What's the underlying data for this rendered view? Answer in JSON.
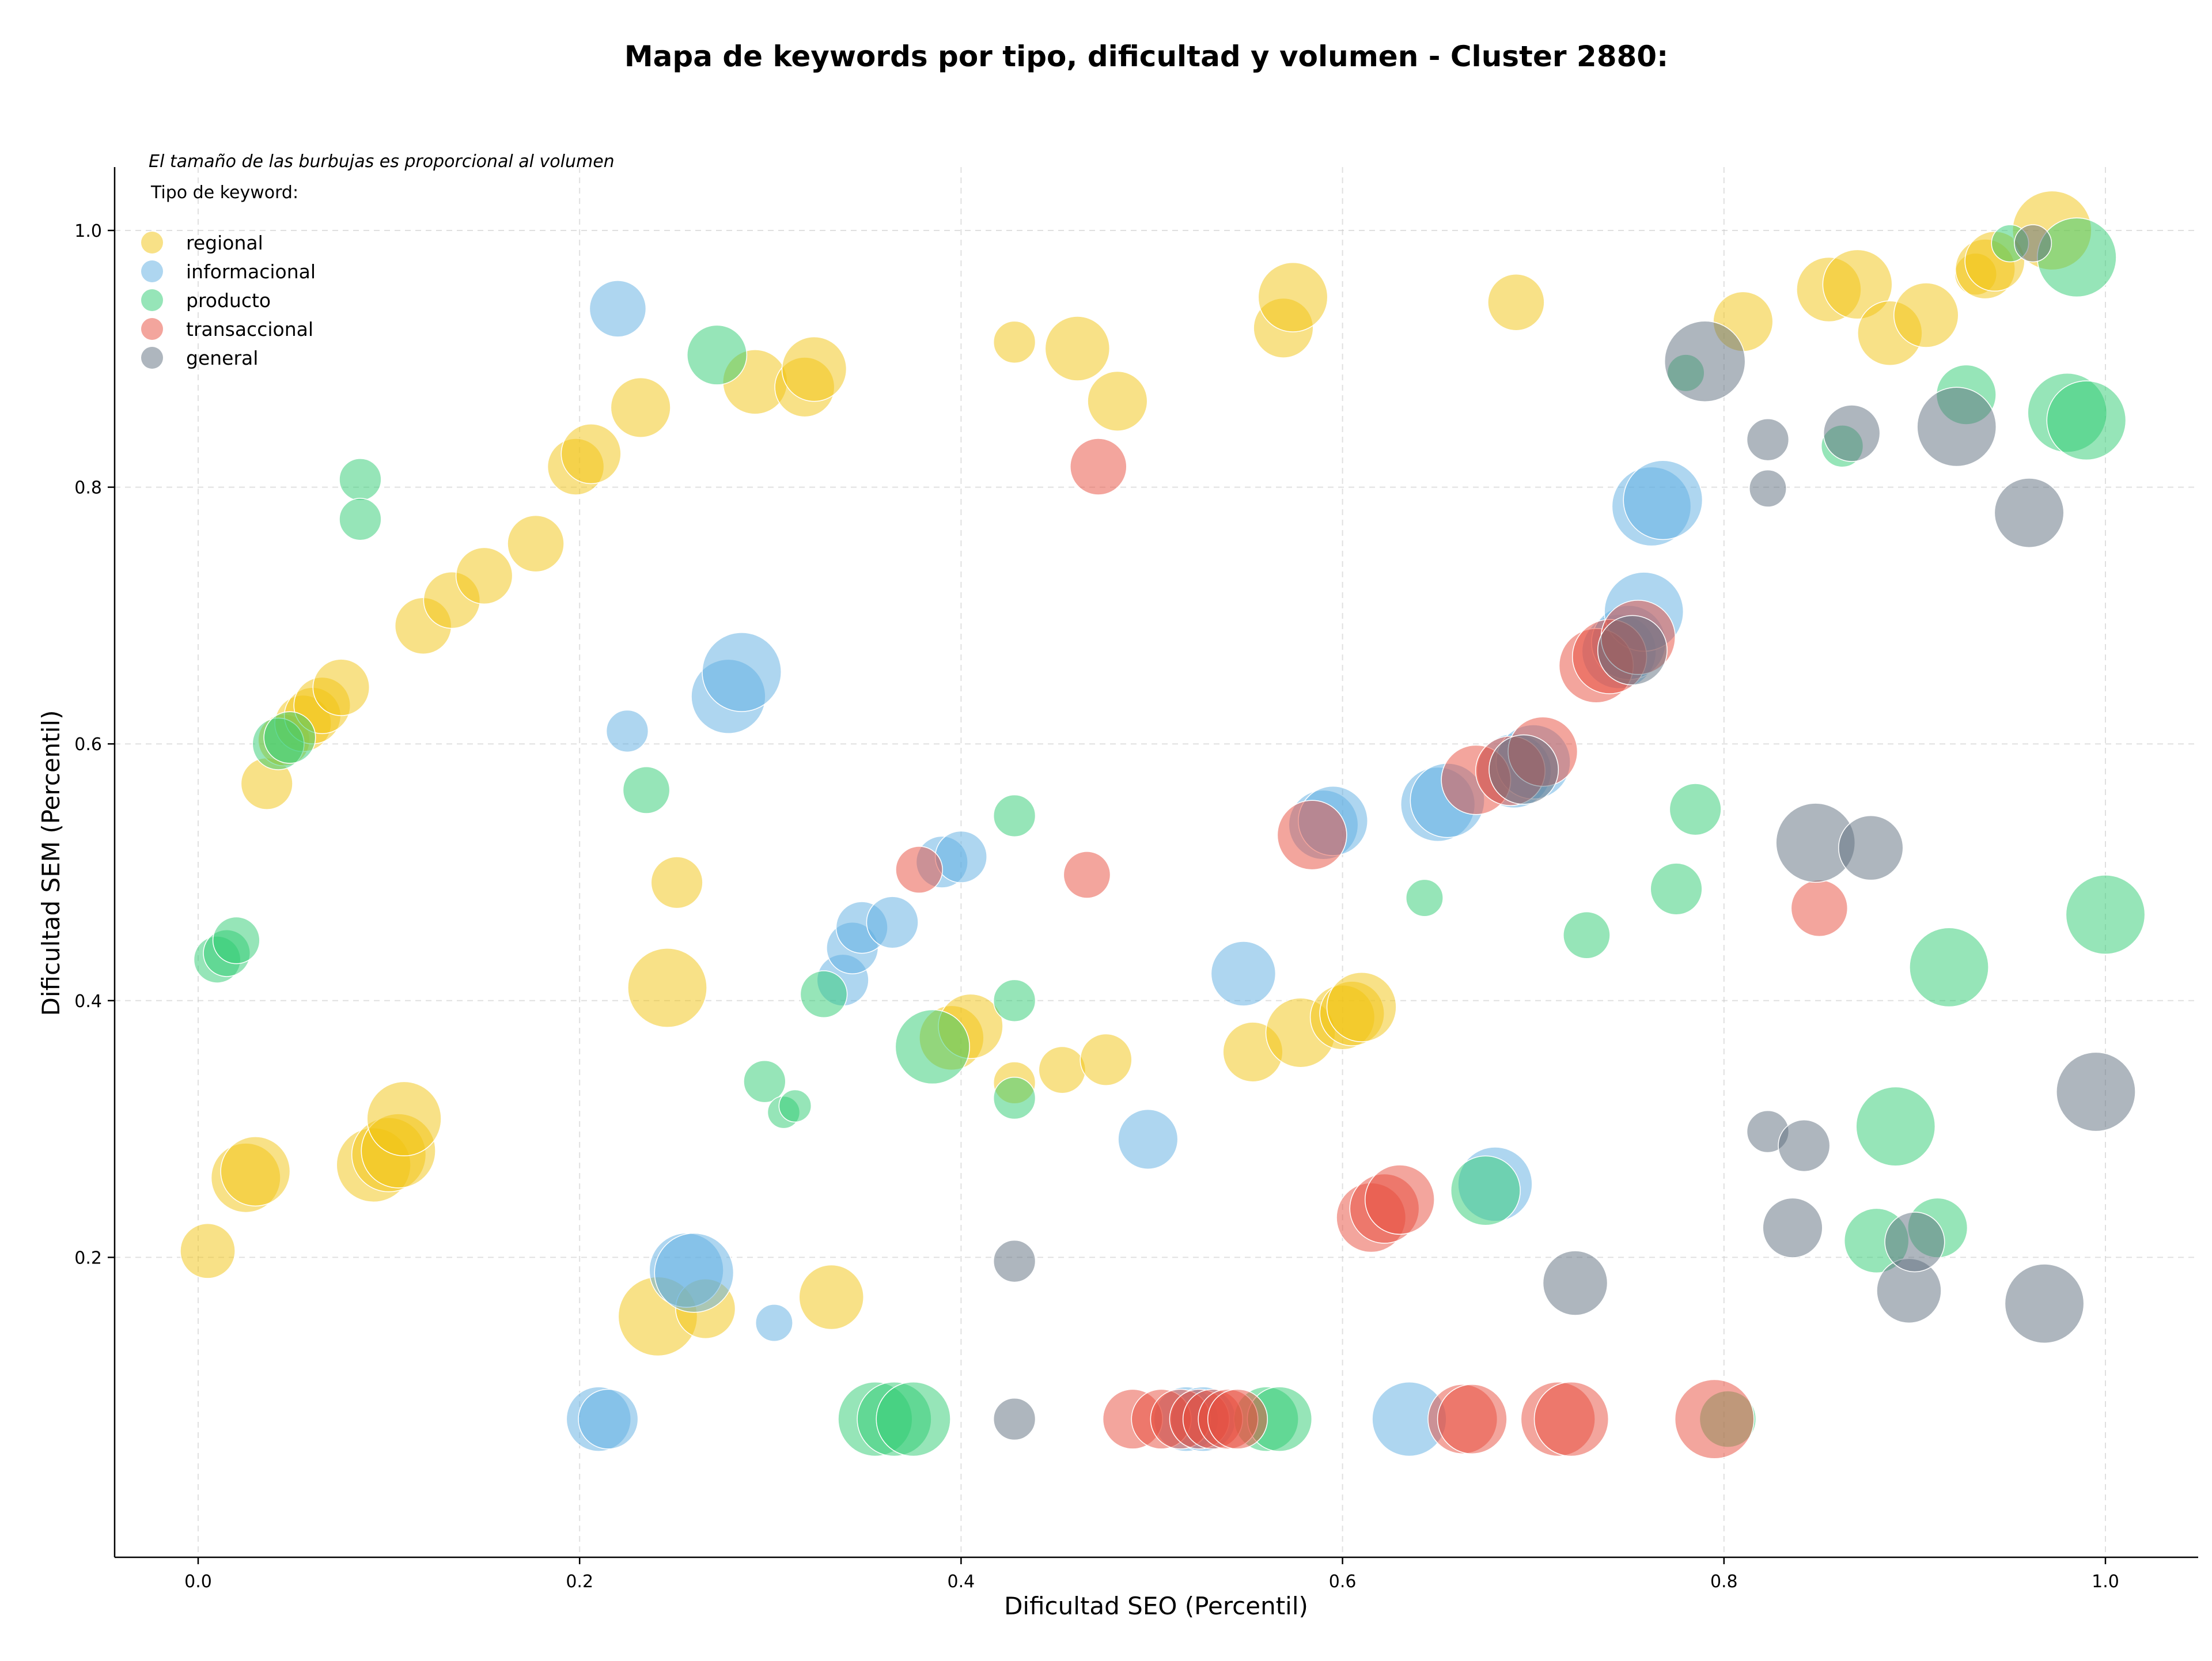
{
  "chart_data": {
    "type": "scatter",
    "title": "Mapa de keywords por tipo, dificultad y volumen - Cluster 2880:",
    "xlabel": "Dificultad SEO (Percentil)",
    "ylabel": "Dificultad SEM (Percentil)",
    "note": "El tamaño de las burbujas es proporcional al volumen",
    "legend_title": "Tipo de keyword:",
    "legend_position": "top-left",
    "xlim": [
      -0.045,
      1.05
    ],
    "ylim": [
      0.035,
      1.045
    ],
    "xticks": [
      0.0,
      0.2,
      0.4,
      0.6,
      0.8,
      1.0
    ],
    "yticks": [
      0.2,
      0.4,
      0.6,
      0.8,
      1.0
    ],
    "xtick_labels": [
      "0.0",
      "0.2",
      "0.4",
      "0.6",
      "0.8",
      "1.0"
    ],
    "ytick_labels": [
      "0.2",
      "0.4",
      "0.6",
      "0.8",
      "1.0"
    ],
    "grid": true,
    "series": [
      {
        "name": "regional",
        "color": "#f1c40f",
        "points": [
          [
            0.005,
            0.205,
            3.4
          ],
          [
            0.025,
            0.262,
            4.3
          ],
          [
            0.03,
            0.267,
            4.3
          ],
          [
            0.036,
            0.569,
            3.2
          ],
          [
            0.045,
            0.603,
            3.2
          ],
          [
            0.055,
            0.616,
            3.5
          ],
          [
            0.06,
            0.622,
            3.5
          ],
          [
            0.065,
            0.63,
            3.5
          ],
          [
            0.075,
            0.644,
            3.5
          ],
          [
            0.092,
            0.272,
            4.6
          ],
          [
            0.1,
            0.28,
            4.6
          ],
          [
            0.105,
            0.283,
            4.6
          ],
          [
            0.108,
            0.308,
            4.6
          ],
          [
            0.118,
            0.692,
            3.5
          ],
          [
            0.133,
            0.712,
            3.5
          ],
          [
            0.15,
            0.731,
            3.5
          ],
          [
            0.177,
            0.756,
            3.5
          ],
          [
            0.198,
            0.816,
            3.5
          ],
          [
            0.206,
            0.826,
            3.7
          ],
          [
            0.232,
            0.862,
            3.7
          ],
          [
            0.241,
            0.154,
            4.9
          ],
          [
            0.246,
            0.41,
            4.9
          ],
          [
            0.251,
            0.492,
            3.2
          ],
          [
            0.266,
            0.16,
            3.7
          ],
          [
            0.292,
            0.882,
            4.0
          ],
          [
            0.318,
            0.878,
            3.7
          ],
          [
            0.323,
            0.892,
            4.0
          ],
          [
            0.332,
            0.169,
            4.0
          ],
          [
            0.395,
            0.371,
            4.0
          ],
          [
            0.405,
            0.38,
            4.0
          ],
          [
            0.428,
            0.913,
            2.6
          ],
          [
            0.428,
            0.336,
            2.6
          ],
          [
            0.453,
            0.346,
            2.9
          ],
          [
            0.461,
            0.908,
            4.0
          ],
          [
            0.476,
            0.354,
            3.2
          ],
          [
            0.482,
            0.867,
            3.7
          ],
          [
            0.553,
            0.36,
            3.7
          ],
          [
            0.569,
            0.924,
            3.7
          ],
          [
            0.574,
            0.948,
            4.3
          ],
          [
            0.578,
            0.375,
            4.3
          ],
          [
            0.6,
            0.387,
            4.0
          ],
          [
            0.605,
            0.39,
            4.0
          ],
          [
            0.61,
            0.395,
            4.3
          ],
          [
            0.691,
            0.944,
            3.5
          ],
          [
            0.81,
            0.929,
            3.7
          ],
          [
            0.855,
            0.954,
            4.0
          ],
          [
            0.87,
            0.958,
            4.3
          ],
          [
            0.887,
            0.92,
            4.0
          ],
          [
            0.906,
            0.934,
            4.0
          ],
          [
            0.932,
            0.966,
            2.6
          ],
          [
            0.937,
            0.97,
            3.7
          ],
          [
            0.942,
            0.976,
            3.7
          ],
          [
            0.972,
            1.0,
            4.9
          ]
        ]
      },
      {
        "name": "informacional",
        "color": "#5dade2",
        "points": [
          [
            0.21,
            0.074,
            4.0
          ],
          [
            0.215,
            0.074,
            3.7
          ],
          [
            0.22,
            0.939,
            3.5
          ],
          [
            0.225,
            0.61,
            2.6
          ],
          [
            0.256,
            0.19,
            4.6
          ],
          [
            0.26,
            0.188,
            4.9
          ],
          [
            0.278,
            0.637,
            4.6
          ],
          [
            0.285,
            0.656,
            4.9
          ],
          [
            0.302,
            0.149,
            2.3
          ],
          [
            0.338,
            0.416,
            3.2
          ],
          [
            0.343,
            0.441,
            3.2
          ],
          [
            0.348,
            0.457,
            3.2
          ],
          [
            0.364,
            0.461,
            3.2
          ],
          [
            0.39,
            0.508,
            3.2
          ],
          [
            0.4,
            0.512,
            3.2
          ],
          [
            0.498,
            0.292,
            3.7
          ],
          [
            0.518,
            0.074,
            4.0
          ],
          [
            0.527,
            0.074,
            4.0
          ],
          [
            0.548,
            0.421,
            4.0
          ],
          [
            0.59,
            0.537,
            4.3
          ],
          [
            0.595,
            0.54,
            4.3
          ],
          [
            0.635,
            0.074,
            4.6
          ],
          [
            0.65,
            0.553,
            4.6
          ],
          [
            0.655,
            0.556,
            4.6
          ],
          [
            0.68,
            0.257,
            4.6
          ],
          [
            0.69,
            0.579,
            4.6
          ],
          [
            0.7,
            0.586,
            4.6
          ],
          [
            0.745,
            0.672,
            4.6
          ],
          [
            0.75,
            0.679,
            4.6
          ],
          [
            0.758,
            0.703,
            4.9
          ],
          [
            0.762,
            0.785,
            4.9
          ],
          [
            0.768,
            0.79,
            4.9
          ]
        ]
      },
      {
        "name": "producto",
        "color": "#2ecc71",
        "points": [
          [
            0.01,
            0.432,
            2.9
          ],
          [
            0.015,
            0.437,
            2.9
          ],
          [
            0.02,
            0.447,
            2.9
          ],
          [
            0.042,
            0.6,
            3.2
          ],
          [
            0.048,
            0.605,
            3.2
          ],
          [
            0.085,
            0.806,
            2.6
          ],
          [
            0.085,
            0.775,
            2.6
          ],
          [
            0.235,
            0.564,
            2.9
          ],
          [
            0.272,
            0.903,
            3.7
          ],
          [
            0.297,
            0.337,
            2.6
          ],
          [
            0.307,
            0.313,
            2.0
          ],
          [
            0.313,
            0.318,
            2.0
          ],
          [
            0.328,
            0.405,
            2.9
          ],
          [
            0.355,
            0.074,
            4.6
          ],
          [
            0.365,
            0.074,
            4.6
          ],
          [
            0.375,
            0.074,
            4.6
          ],
          [
            0.385,
            0.364,
            4.6
          ],
          [
            0.428,
            0.544,
            2.6
          ],
          [
            0.428,
            0.4,
            2.6
          ],
          [
            0.428,
            0.324,
            2.6
          ],
          [
            0.56,
            0.074,
            4.0
          ],
          [
            0.567,
            0.074,
            4.0
          ],
          [
            0.643,
            0.48,
            2.3
          ],
          [
            0.675,
            0.252,
            4.3
          ],
          [
            0.728,
            0.451,
            2.9
          ],
          [
            0.775,
            0.487,
            3.2
          ],
          [
            0.78,
            0.889,
            2.3
          ],
          [
            0.785,
            0.549,
            3.2
          ],
          [
            0.802,
            0.074,
            3.5
          ],
          [
            0.862,
            0.832,
            2.6
          ],
          [
            0.88,
            0.213,
            4.0
          ],
          [
            0.89,
            0.302,
            4.9
          ],
          [
            0.912,
            0.223,
            3.7
          ],
          [
            0.918,
            0.426,
            4.9
          ],
          [
            0.927,
            0.872,
            3.7
          ],
          [
            0.95,
            0.99,
            2.3
          ],
          [
            0.98,
            0.858,
            4.9
          ],
          [
            0.985,
            0.979,
            4.9
          ],
          [
            0.99,
            0.852,
            4.9
          ],
          [
            1.0,
            0.467,
            4.9
          ]
        ]
      },
      {
        "name": "transaccional",
        "color": "#e74c3c",
        "points": [
          [
            0.378,
            0.502,
            2.9
          ],
          [
            0.466,
            0.498,
            2.9
          ],
          [
            0.472,
            0.816,
            3.5
          ],
          [
            0.49,
            0.074,
            3.7
          ],
          [
            0.505,
            0.074,
            3.7
          ],
          [
            0.515,
            0.074,
            3.7
          ],
          [
            0.525,
            0.074,
            3.7
          ],
          [
            0.532,
            0.074,
            3.7
          ],
          [
            0.54,
            0.074,
            3.7
          ],
          [
            0.545,
            0.074,
            3.7
          ],
          [
            0.584,
            0.529,
            4.3
          ],
          [
            0.615,
            0.231,
            4.3
          ],
          [
            0.622,
            0.238,
            4.3
          ],
          [
            0.63,
            0.245,
            4.3
          ],
          [
            0.663,
            0.074,
            4.3
          ],
          [
            0.668,
            0.074,
            4.3
          ],
          [
            0.67,
            0.572,
            4.3
          ],
          [
            0.688,
            0.579,
            4.3
          ],
          [
            0.705,
            0.594,
            4.3
          ],
          [
            0.713,
            0.074,
            4.6
          ],
          [
            0.72,
            0.074,
            4.6
          ],
          [
            0.733,
            0.661,
            4.6
          ],
          [
            0.74,
            0.668,
            4.6
          ],
          [
            0.755,
            0.683,
            4.6
          ],
          [
            0.795,
            0.074,
            4.9
          ],
          [
            0.85,
            0.472,
            3.5
          ]
        ]
      },
      {
        "name": "general",
        "color": "#5d6d7e",
        "points": [
          [
            0.428,
            0.197,
            2.6
          ],
          [
            0.428,
            0.074,
            2.6
          ],
          [
            0.695,
            0.58,
            4.3
          ],
          [
            0.722,
            0.18,
            4.0
          ],
          [
            0.752,
            0.673,
            4.3
          ],
          [
            0.79,
            0.898,
            5.0
          ],
          [
            0.823,
            0.837,
            2.6
          ],
          [
            0.823,
            0.799,
            2.3
          ],
          [
            0.823,
            0.298,
            2.6
          ],
          [
            0.836,
            0.223,
            3.7
          ],
          [
            0.842,
            0.287,
            3.2
          ],
          [
            0.848,
            0.523,
            4.9
          ],
          [
            0.867,
            0.842,
            3.5
          ],
          [
            0.877,
            0.519,
            4.0
          ],
          [
            0.897,
            0.174,
            4.0
          ],
          [
            0.9,
            0.212,
            3.7
          ],
          [
            0.922,
            0.847,
            4.9
          ],
          [
            0.96,
            0.78,
            4.3
          ],
          [
            0.962,
            0.99,
            2.3
          ],
          [
            0.968,
            0.164,
            4.9
          ],
          [
            0.995,
            0.329,
            4.9
          ]
        ]
      }
    ]
  }
}
